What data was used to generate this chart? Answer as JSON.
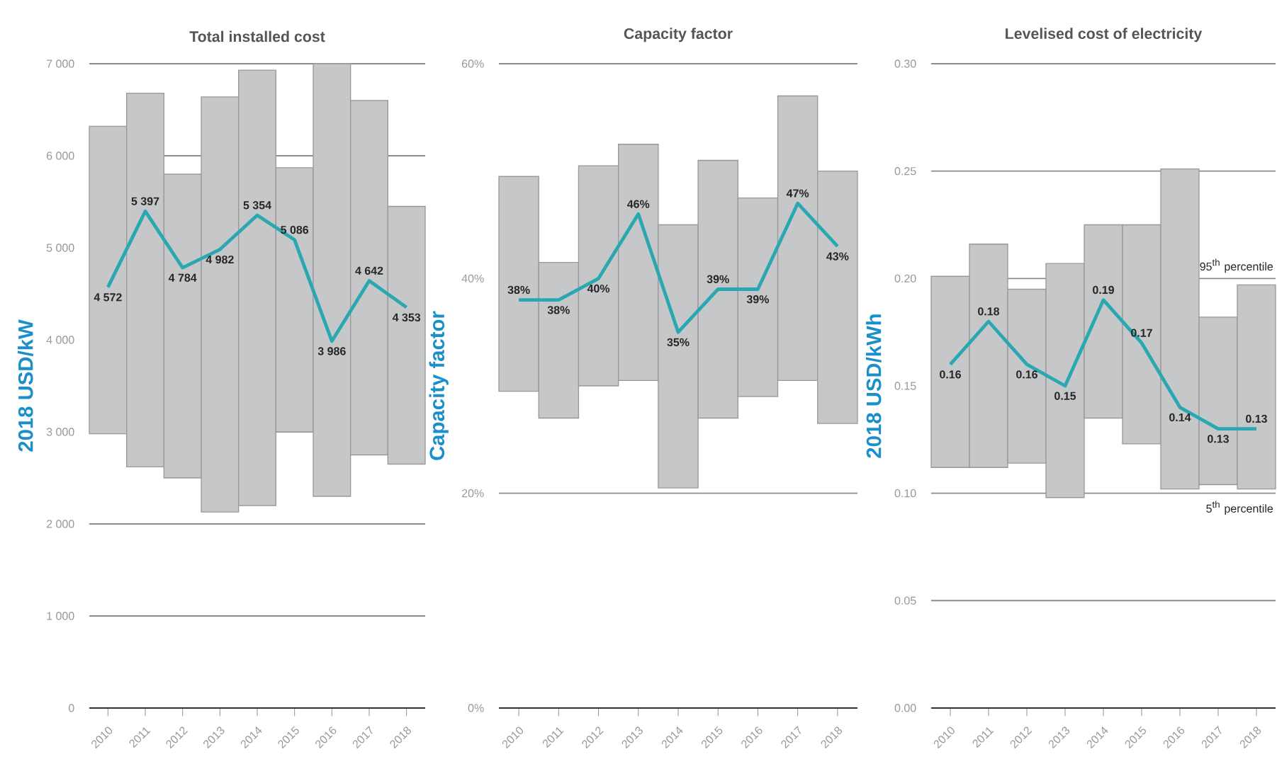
{
  "chart_data": [
    {
      "type": "bar",
      "title": "Total installed cost",
      "ylabel": "2018 USD/kW",
      "categories": [
        "2010",
        "2011",
        "2012",
        "2013",
        "2014",
        "2015",
        "2016",
        "2017",
        "2018"
      ],
      "ylim": [
        0,
        7000
      ],
      "yticks": [
        {
          "value": 0,
          "label": "0"
        },
        {
          "value": 1000,
          "label": "1 000"
        },
        {
          "value": 2000,
          "label": "2 000"
        },
        {
          "value": 3000,
          "label": "3 000"
        },
        {
          "value": 4000,
          "label": "4 000"
        },
        {
          "value": 5000,
          "label": "5 000"
        },
        {
          "value": 6000,
          "label": "6 000"
        },
        {
          "value": 7000,
          "label": "7 000"
        }
      ],
      "grid": "y",
      "series": [
        {
          "color": "#c6c7c9",
          "base": [
            2980,
            2620,
            2500,
            2130,
            2200,
            3000,
            2300,
            2750,
            2650
          ],
          "values": [
            3340,
            4060,
            3300,
            4510,
            4730,
            2870,
            4700,
            3850,
            2800
          ]
        },
        {
          "type": "line",
          "color": "#2aa8b2",
          "values": [
            4572,
            5397,
            4784,
            4982,
            5354,
            5086,
            3986,
            4642,
            4353
          ],
          "value_labels": [
            "4 572",
            "5 397",
            "4 784",
            "4 982",
            "5 354",
            "5 086",
            "3 986",
            "4 642",
            "4 353"
          ]
        }
      ]
    },
    {
      "type": "bar",
      "title": "Capacity factor",
      "ylabel": "Capacity factor",
      "categories": [
        "2010",
        "2011",
        "2012",
        "2013",
        "2014",
        "2015",
        "2016",
        "2017",
        "2018"
      ],
      "ylim": [
        0,
        60
      ],
      "yticks": [
        {
          "value": 0,
          "label": "0%"
        },
        {
          "value": 20,
          "label": "20%"
        },
        {
          "value": 40,
          "label": "40%"
        },
        {
          "value": 60,
          "label": "60%"
        }
      ],
      "grid": "y",
      "series": [
        {
          "color": "#c6c7c9",
          "base": [
            29.5,
            27,
            30,
            30.5,
            20.5,
            27,
            29,
            30.5,
            26.5
          ],
          "values": [
            20,
            14.5,
            20.5,
            22,
            24.5,
            24,
            18.5,
            26.5,
            23.5
          ]
        },
        {
          "type": "line",
          "color": "#2aa8b2",
          "values": [
            38,
            38,
            40,
            46,
            35,
            39,
            39,
            47,
            43
          ],
          "value_labels": [
            "38%",
            "38%",
            "40%",
            "46%",
            "35%",
            "39%",
            "39%",
            "47%",
            "43%"
          ]
        }
      ]
    },
    {
      "type": "bar",
      "title": "Levelised cost of electricity",
      "ylabel": "2018 USD/kWh",
      "categories": [
        "2010",
        "2011",
        "2012",
        "2013",
        "2014",
        "2015",
        "2016",
        "2017",
        "2018"
      ],
      "ylim": [
        0,
        0.3
      ],
      "yticks": [
        {
          "value": 0,
          "label": "0.00"
        },
        {
          "value": 0.05,
          "label": "0.05"
        },
        {
          "value": 0.1,
          "label": "0.10"
        },
        {
          "value": 0.15,
          "label": "0.15"
        },
        {
          "value": 0.2,
          "label": "0.20"
        },
        {
          "value": 0.25,
          "label": "0.25"
        },
        {
          "value": 0.3,
          "label": "0.30"
        }
      ],
      "grid": "y",
      "series": [
        {
          "color": "#c6c7c9",
          "base": [
            0.112,
            0.112,
            0.114,
            0.098,
            0.135,
            0.123,
            0.102,
            0.104,
            0.102
          ],
          "values": [
            0.089,
            0.104,
            0.081,
            0.109,
            0.09,
            0.102,
            0.149,
            0.078,
            0.095
          ]
        },
        {
          "type": "line",
          "color": "#2aa8b2",
          "values": [
            0.16,
            0.18,
            0.16,
            0.15,
            0.19,
            0.17,
            0.14,
            0.13,
            0.13
          ],
          "value_labels": [
            "0.16",
            "0.18",
            "0.16",
            "0.15",
            "0.19",
            "0.17",
            "0.14",
            "0.13",
            "0.13"
          ]
        }
      ],
      "annotations": [
        "95$^{th}$ percentile",
        "5$^{th}$ percentile"
      ]
    }
  ]
}
